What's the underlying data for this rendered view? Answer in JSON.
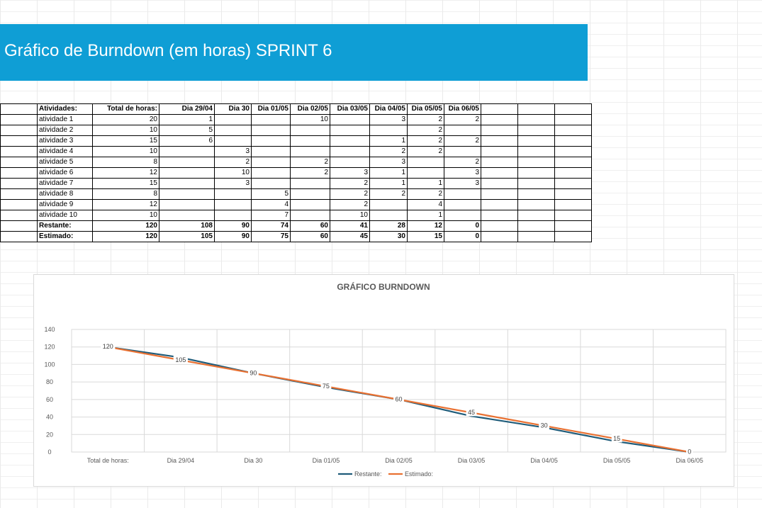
{
  "banner": {
    "title": "Gráfico de Burndown (em horas) SPRINT 6"
  },
  "table": {
    "headers": [
      "Atividades:",
      "Total de horas:",
      "Dia 29/04",
      "Dia 30",
      "Dia 01/05",
      "Dia 02/05",
      "Dia 03/05",
      "Dia 04/05",
      "Dia 05/05",
      "Dia 06/05"
    ],
    "rows": [
      [
        "atividade 1",
        "20",
        "1",
        "",
        "",
        "10",
        "",
        "3",
        "2",
        "2"
      ],
      [
        "atividade 2",
        "10",
        "5",
        "",
        "",
        "",
        "",
        "",
        "2",
        ""
      ],
      [
        "atividade 3",
        "15",
        "6",
        "",
        "",
        "",
        "",
        "1",
        "2",
        "2"
      ],
      [
        "atividade 4",
        "10",
        "",
        "3",
        "",
        "",
        "",
        "2",
        "2",
        ""
      ],
      [
        "atividade 5",
        "8",
        "",
        "2",
        "",
        "2",
        "",
        "3",
        "",
        "2"
      ],
      [
        "atividade 6",
        "12",
        "",
        "10",
        "",
        "2",
        "3",
        "1",
        "",
        "3"
      ],
      [
        "atividade 7",
        "15",
        "",
        "3",
        "",
        "",
        "2",
        "1",
        "1",
        "3"
      ],
      [
        "atividade 8",
        "8",
        "",
        "",
        "5",
        "",
        "2",
        "2",
        "2",
        ""
      ],
      [
        "atividade 9",
        "12",
        "",
        "",
        "4",
        "",
        "2",
        "",
        "4",
        ""
      ],
      [
        "atividade 10",
        "10",
        "",
        "",
        "7",
        "",
        "10",
        "",
        "1",
        ""
      ]
    ],
    "totals": [
      [
        "Restante:",
        "120",
        "108",
        "90",
        "74",
        "60",
        "41",
        "28",
        "12",
        "0"
      ],
      [
        "Estimado:",
        "120",
        "105",
        "90",
        "75",
        "60",
        "45",
        "30",
        "15",
        "0"
      ]
    ]
  },
  "chart_data": {
    "type": "line",
    "title": "GRÁFICO BURNDOWN",
    "categories": [
      "Total de horas:",
      "Dia 29/04",
      "Dia 30",
      "Dia 01/05",
      "Dia 02/05",
      "Dia 03/05",
      "Dia 04/05",
      "Dia 05/05",
      "Dia 06/05"
    ],
    "series": [
      {
        "name": "Restante:",
        "values": [
          120,
          108,
          90,
          74,
          60,
          41,
          28,
          12,
          0
        ],
        "color": "#1f5c7a"
      },
      {
        "name": "Estimado:",
        "values": [
          120,
          105,
          90,
          75,
          60,
          45,
          30,
          15,
          0
        ],
        "color": "#e97132"
      }
    ],
    "data_labels_series": "Estimado:",
    "ylim": [
      0,
      140
    ],
    "yticks": [
      "0",
      "20",
      "40",
      "60",
      "80",
      "100",
      "120",
      "140"
    ],
    "grid": true,
    "legend": "bottom"
  }
}
